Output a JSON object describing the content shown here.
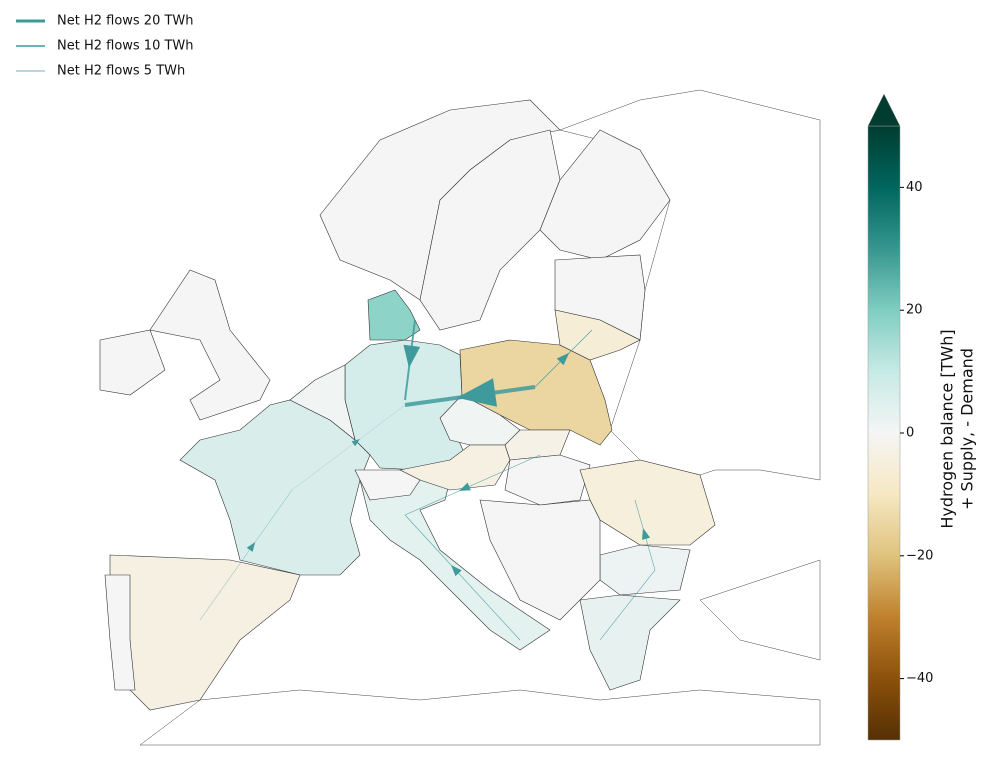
{
  "legend": [
    {
      "label": "Net H2 flows 20 TWh",
      "value": 20
    },
    {
      "label": "Net H2 flows 10 TWh",
      "value": 10
    },
    {
      "label": "Net H2 flows 5 TWh",
      "value": 5
    }
  ],
  "colorbar": {
    "label": [
      "Hydrogen balance [TWh]",
      "+ Supply, - Demand"
    ],
    "lim": [
      -50,
      50
    ],
    "ticks": [
      40,
      20,
      0,
      {
        "value": -20,
        "label": "−20"
      },
      {
        "value": -40,
        "label": "−40"
      }
    ],
    "extend": "max",
    "colormap": [
      "#543005",
      "#8c510a",
      "#bf812d",
      "#dfc27d",
      "#f6e8c3",
      "#f5f5f5",
      "#c7eae5",
      "#80cdc1",
      "#35978f",
      "#01665e",
      "#003c30"
    ]
  },
  "balances": [
    7,
    6,
    -4,
    0,
    4,
    -15,
    1,
    -4,
    -3,
    0,
    -5,
    2,
    3,
    0,
    0,
    1,
    18,
    0,
    0,
    0,
    0,
    0,
    0,
    -6
  ],
  "flows": [
    20,
    10,
    4,
    2,
    1,
    3,
    3,
    3
  ],
  "flow_color": "#3f9a9c"
}
